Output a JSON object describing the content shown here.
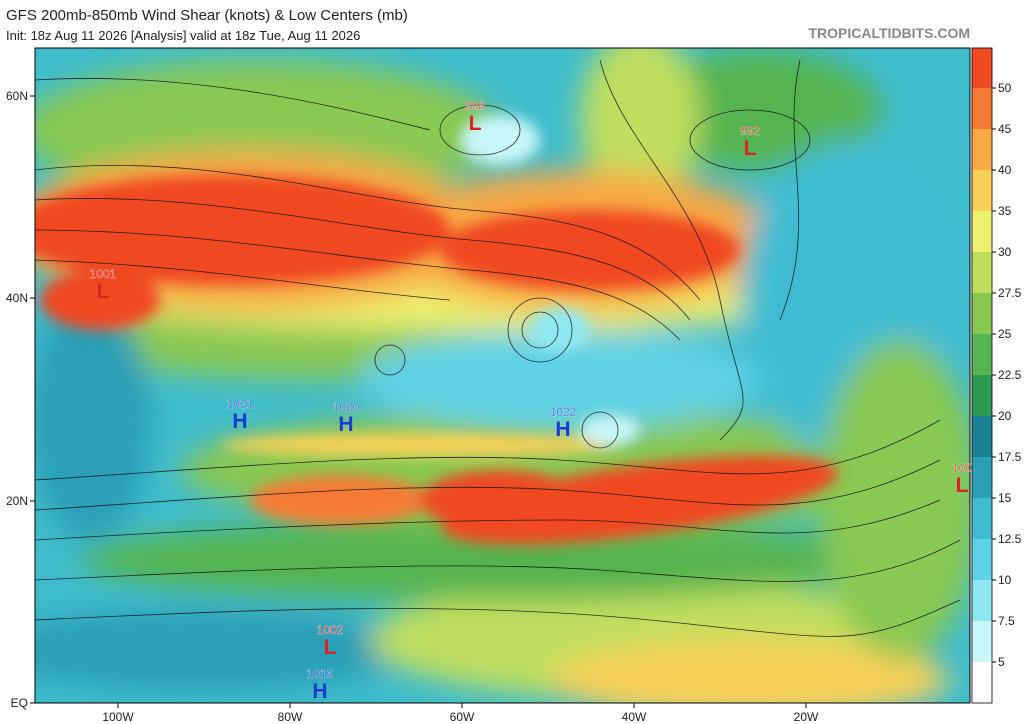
{
  "header": {
    "title": "GFS 200mb-850mb Wind Shear (knots) & Low Centers (mb)",
    "subtitle": "Init: 18z Aug 11 2026   [Analysis]   valid at 18z Tue, Aug 11 2026",
    "site": "TROPICALTIDBITS.COM"
  },
  "latitude_labels": [
    "60N",
    "40N",
    "20N",
    "EQ"
  ],
  "longitude_labels": [
    "100W",
    "80W",
    "60W",
    "40W",
    "20W"
  ],
  "colorbar": {
    "labels": [
      5,
      7.5,
      10,
      12.5,
      15,
      17.5,
      20,
      22.5,
      25,
      27.5,
      30,
      35,
      40,
      45,
      50
    ],
    "colors": [
      "#ffffff",
      "#c8f6fa",
      "#8ee8f4",
      "#5ed2e6",
      "#40bcd2",
      "#2a9fb6",
      "#1b8296",
      "#2f9a52",
      "#55b450",
      "#88c852",
      "#c0de5e",
      "#eef070",
      "#f8d058",
      "#f8a844",
      "#f47a34",
      "#f04a24"
    ]
  },
  "pressure_centers": [
    {
      "value": "998",
      "symbol": "L"
    },
    {
      "value": "992",
      "symbol": "L"
    },
    {
      "value": "1001",
      "symbol": "L"
    },
    {
      "value": "1021",
      "symbol": "H"
    },
    {
      "value": "1020",
      "symbol": "H"
    },
    {
      "value": "1022",
      "symbol": "H"
    },
    {
      "value": "100",
      "symbol": "L"
    },
    {
      "value": "1002",
      "symbol": "L"
    },
    {
      "value": "1016",
      "symbol": "H"
    }
  ]
}
